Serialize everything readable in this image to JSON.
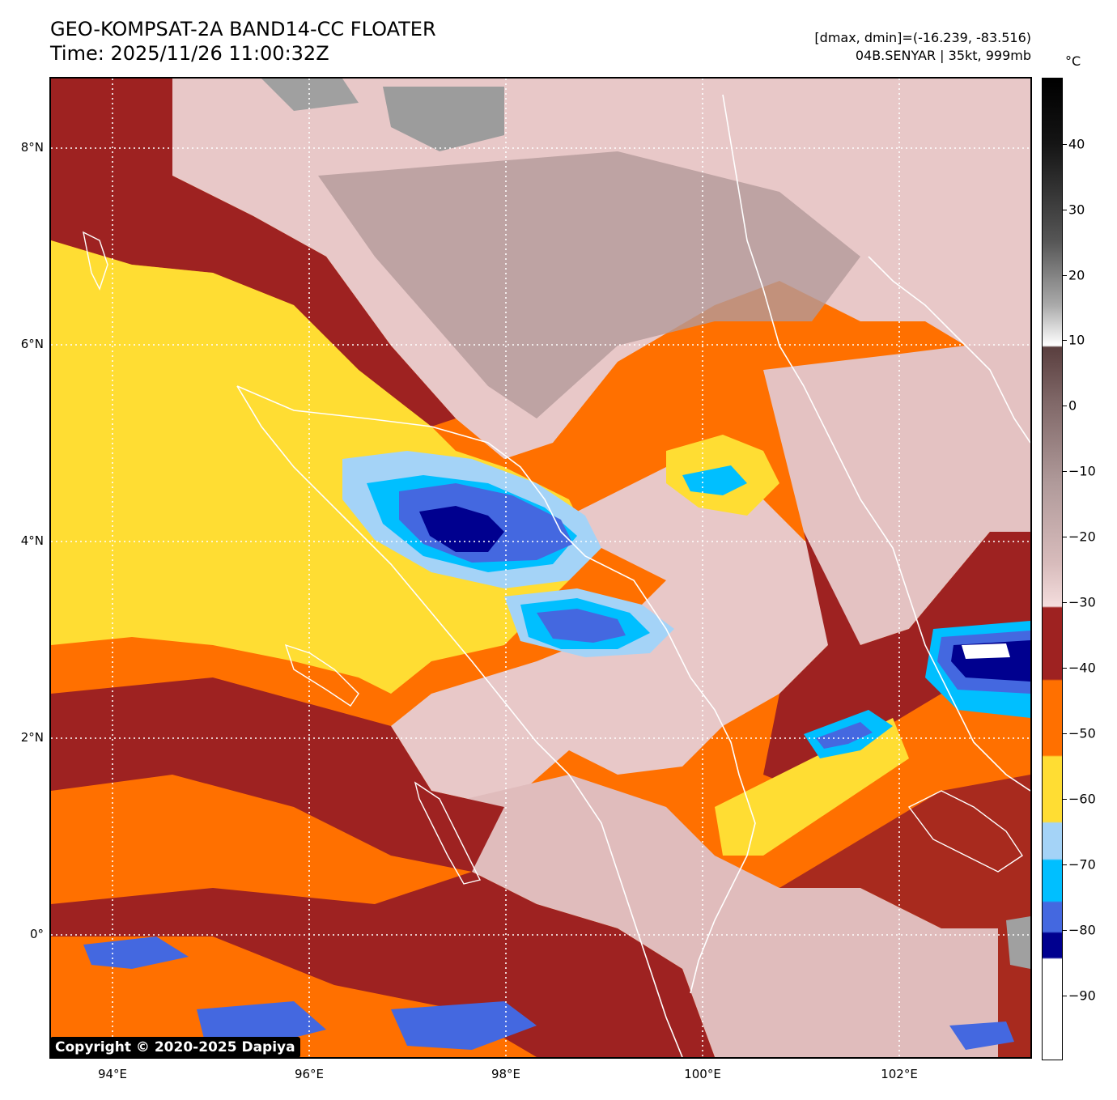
{
  "header": {
    "title_line1": "GEO-KOMPSAT-2A BAND14-CC FLOATER",
    "title_line2": "Time: 2025/11/26 11:00:32Z",
    "info_line1": "[dmax, dmin]=(-16.239, -83.516)",
    "info_line2": "04B.SENYAR | 35kt, 999mb"
  },
  "map": {
    "lat_labels": [
      "8°N",
      "6°N",
      "4°N",
      "2°N",
      "0°"
    ],
    "lon_labels": [
      "94°E",
      "96°E",
      "98°E",
      "100°E",
      "102°E"
    ],
    "copyright": "Copyright © 2020-2025 Dapiya",
    "palette": {
      "yellow": "#ffdd33",
      "orange": "#ff7000",
      "darkred": "#9e2221",
      "lightblue": "#a4d3f7",
      "cyan": "#00bfff",
      "royalblue": "#4468e0",
      "navy": "#00008f",
      "pink": "#e8c8c8",
      "mauve": "#b39a9a",
      "gray": "#888888",
      "coast": "#ffffff"
    }
  },
  "colorbar": {
    "unit": "°C",
    "ticks": [
      "40",
      "30",
      "20",
      "10",
      "0",
      "−10",
      "−20",
      "−30",
      "−40",
      "−50",
      "−60",
      "−70",
      "−80",
      "−90"
    ]
  }
}
